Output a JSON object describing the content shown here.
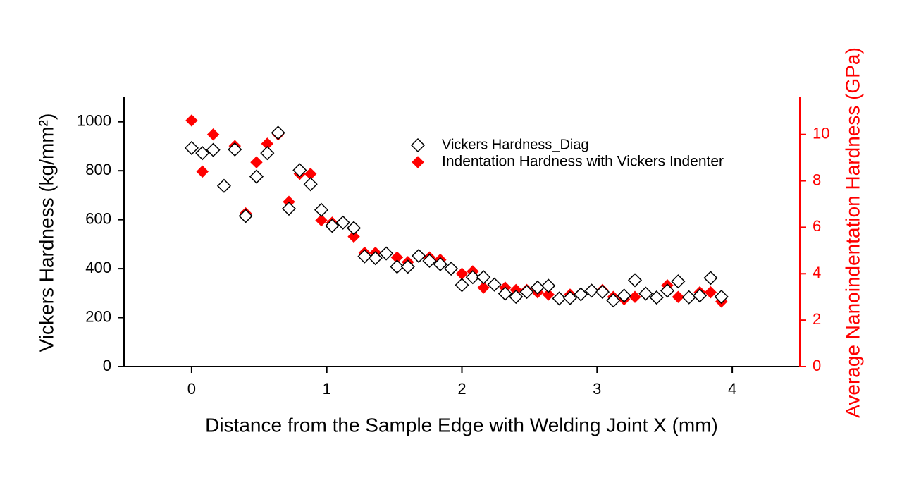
{
  "chart_data": {
    "type": "scatter",
    "xlabel": "Distance from the Sample Edge with Welding Joint  X (mm)",
    "ylabel": "Vickers Hardness (kg/mm²)",
    "y2label": "Average Nanoindentation Hardness (GPa)",
    "xlim": [
      -0.5,
      4.5
    ],
    "xticks": [
      0,
      1,
      2,
      3,
      4
    ],
    "ylim": [
      0,
      1100
    ],
    "yticks": [
      0,
      200,
      400,
      600,
      800,
      1000
    ],
    "y2lim": [
      0,
      11.6
    ],
    "y2ticks": [
      0,
      2,
      4,
      6,
      8,
      10
    ],
    "y2color": "#ff0000",
    "series": [
      {
        "name": "Vickers Hardness_Diag",
        "color": "#000000",
        "marker": "open-diamond",
        "x": [
          0,
          0.08,
          0.16,
          0.24,
          0.32,
          0.4,
          0.48,
          0.56,
          0.64,
          0.72,
          0.8,
          0.88,
          0.96,
          1.04,
          1.12,
          1.2,
          1.28,
          1.36,
          1.44,
          1.52,
          1.6,
          1.68,
          1.76,
          1.84,
          1.92,
          2.0,
          2.08,
          2.16,
          2.24,
          2.32,
          2.4,
          2.48,
          2.56,
          2.64,
          2.72,
          2.8,
          2.88,
          2.96,
          3.04,
          3.12,
          3.2,
          3.28,
          3.36,
          3.44,
          3.52,
          3.6,
          3.68,
          3.76,
          3.84,
          3.92
        ],
        "values": [
          893,
          872,
          885,
          738,
          887,
          615,
          776,
          872,
          955,
          645,
          802,
          745,
          640,
          575,
          588,
          566,
          450,
          443,
          462,
          408,
          408,
          452,
          432,
          418,
          400,
          333,
          365,
          365,
          335,
          298,
          285,
          305,
          323,
          330,
          278,
          280,
          295,
          310,
          305,
          270,
          290,
          353,
          298,
          282,
          310,
          348,
          283,
          290,
          362,
          285
        ]
      },
      {
        "name": "Indentation Hardness with Vickers Indenter",
        "color": "#ff0000",
        "marker": "filled-diamond",
        "axis": "y2",
        "x": [
          0,
          0.08,
          0.16,
          0.32,
          0.4,
          0.48,
          0.56,
          0.64,
          0.72,
          0.8,
          0.88,
          0.96,
          1.04,
          1.2,
          1.28,
          1.36,
          1.52,
          1.6,
          1.76,
          1.84,
          2.0,
          2.08,
          2.16,
          2.32,
          2.4,
          2.48,
          2.56,
          2.64,
          2.8,
          2.96,
          3.04,
          3.12,
          3.2,
          3.28,
          3.52,
          3.6,
          3.68,
          3.76,
          3.84,
          3.92
        ],
        "values": [
          10.6,
          8.4,
          10.0,
          9.5,
          6.6,
          8.8,
          9.6,
          10.0,
          7.1,
          8.3,
          8.3,
          6.3,
          6.2,
          5.6,
          4.9,
          4.9,
          4.7,
          4.5,
          4.7,
          4.6,
          4.0,
          4.1,
          3.4,
          3.4,
          3.3,
          3.3,
          3.2,
          3.1,
          3.1,
          3.3,
          3.3,
          3.0,
          2.9,
          3.0,
          3.5,
          3.0,
          3.0,
          3.2,
          3.2,
          2.8
        ]
      }
    ]
  }
}
